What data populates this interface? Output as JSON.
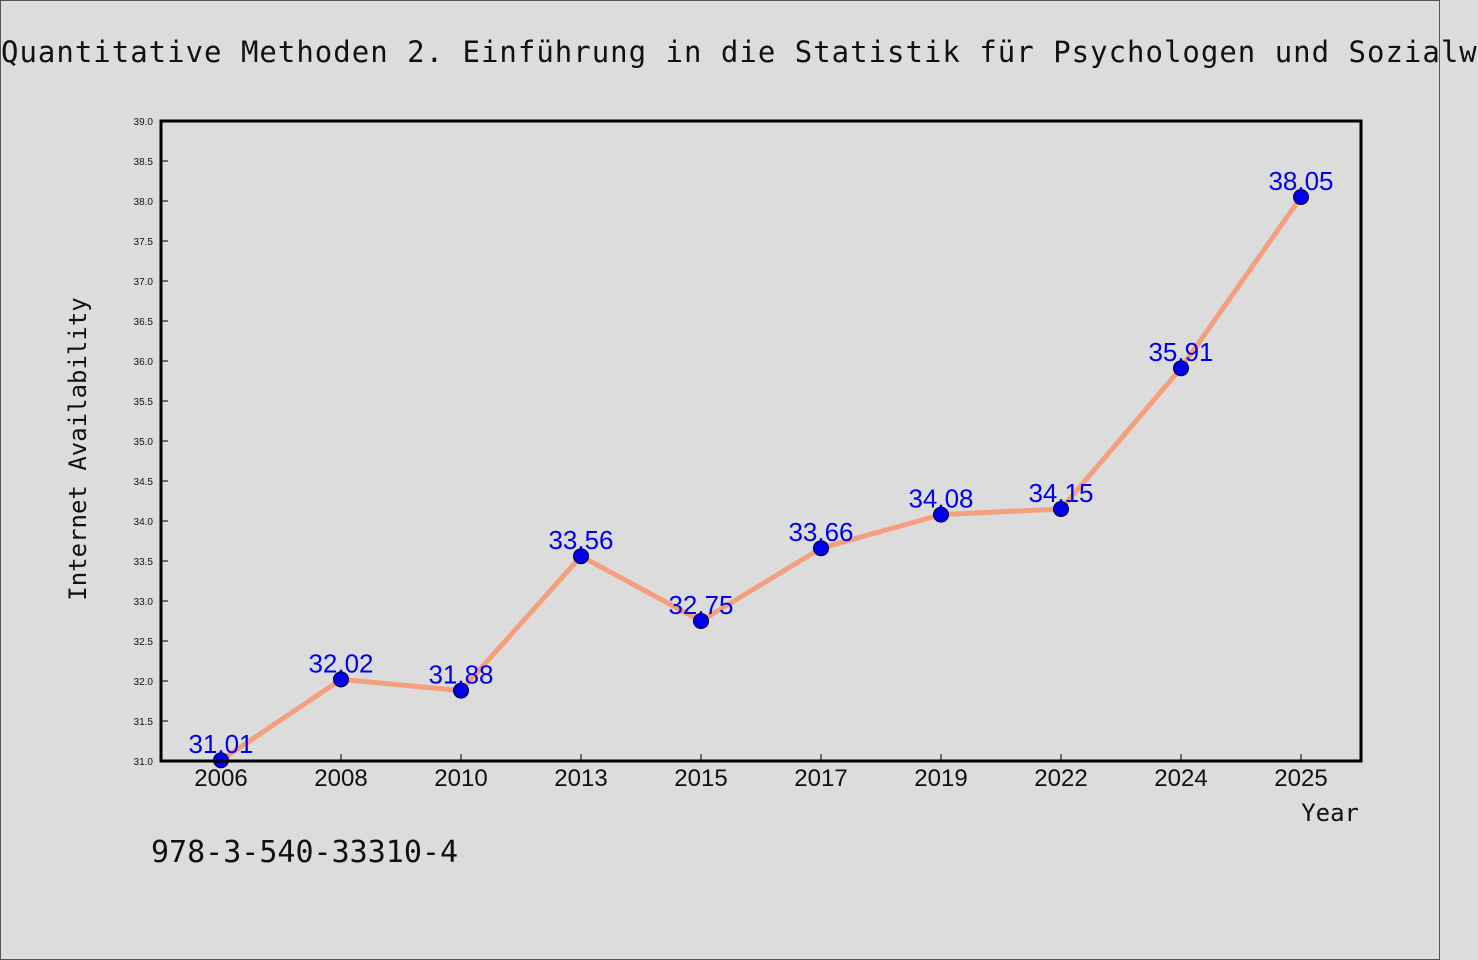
{
  "header": {
    "title": "Quantitative Methoden 2. Einführung in die Statistik für Psychologen und Sozialw"
  },
  "footer": {
    "isbn": "978-3-540-33310-4"
  },
  "chart_data": {
    "type": "line",
    "title": "Quantitative Methoden 2. Einführung in die Statistik für Psychologen und Sozialw",
    "xlabel": "Year",
    "ylabel": "Internet Availability",
    "categories": [
      "2006",
      "2008",
      "2010",
      "2013",
      "2015",
      "2017",
      "2019",
      "2022",
      "2024",
      "2025"
    ],
    "series": [
      {
        "values": [
          31.01,
          32.02,
          31.88,
          33.56,
          32.75,
          33.66,
          34.08,
          34.15,
          35.91,
          38.05
        ],
        "line_color": "#f4a07e",
        "marker_color": "#0000ee"
      }
    ],
    "data_labels": [
      "31.01",
      "32.02",
      "31.88",
      "33.56",
      "32.75",
      "33.66",
      "34.08",
      "34.15",
      "35.91",
      "38.05"
    ],
    "data_label_color": "#0000ee",
    "ylim": [
      31.0,
      39.0
    ],
    "yticks": [
      "31.0",
      "31.5",
      "32.0",
      "32.5",
      "33.0",
      "33.5",
      "34.0",
      "34.5",
      "35.0",
      "35.5",
      "36.0",
      "36.5",
      "37.0",
      "37.5",
      "38.0",
      "38.5",
      "39.0"
    ],
    "grid": false,
    "legend": "none"
  }
}
